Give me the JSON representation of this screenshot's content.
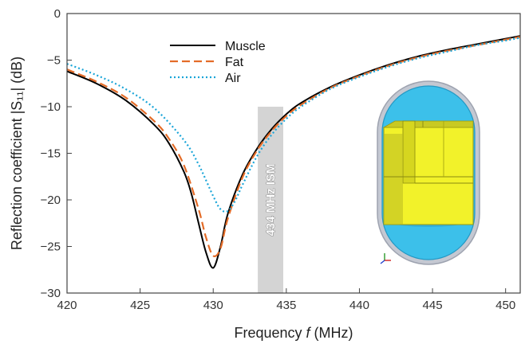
{
  "chart_data": {
    "type": "line",
    "xlabel_prefix": "Frequency ",
    "xlabel_var": "f",
    "xlabel_unit": " (MHz)",
    "ylabel": "Reflection coefficient |S₁₁| (dB)",
    "xlim": [
      420,
      451
    ],
    "ylim": [
      -30,
      0
    ],
    "xticks": [
      420,
      425,
      430,
      435,
      440,
      445,
      450
    ],
    "yticks": [
      0,
      -5,
      -10,
      -15,
      -20,
      -25,
      -30
    ],
    "grid": false,
    "legend_position": "top-left",
    "band": {
      "label": "434 MHz ISM",
      "x0": 433.05,
      "x1": 434.79,
      "y_top": -10,
      "y_bottom": -30,
      "color": "#d4d4d4"
    },
    "series": [
      {
        "name": "Muscle",
        "color": "#000000",
        "style": "solid",
        "x": [
          420,
          422,
          424,
          426,
          427,
          428,
          428.5,
          429,
          429.5,
          430,
          430.5,
          431,
          432,
          433,
          434,
          435,
          436,
          438,
          440,
          442,
          444,
          446,
          448,
          450,
          451
        ],
        "y": [
          -6.2,
          -7.5,
          -9.3,
          -12.0,
          -14.0,
          -17.0,
          -19.3,
          -22.5,
          -25.6,
          -27.3,
          -25.0,
          -21.5,
          -17.3,
          -14.5,
          -12.4,
          -10.8,
          -9.6,
          -7.9,
          -6.6,
          -5.5,
          -4.6,
          -3.9,
          -3.3,
          -2.7,
          -2.4
        ]
      },
      {
        "name": "Fat",
        "color": "#e46c28",
        "style": "dashed",
        "x": [
          420,
          422,
          424,
          426,
          427,
          428,
          429,
          429.5,
          430,
          430.5,
          431,
          432,
          433,
          434,
          435,
          436,
          438,
          440,
          442,
          444,
          446,
          448,
          450,
          451
        ],
        "y": [
          -6.0,
          -7.3,
          -9.0,
          -11.6,
          -13.5,
          -16.3,
          -21.0,
          -24.0,
          -26.0,
          -25.2,
          -22.0,
          -17.6,
          -14.7,
          -12.6,
          -11.0,
          -9.8,
          -8.0,
          -6.7,
          -5.6,
          -4.7,
          -4.0,
          -3.4,
          -2.8,
          -2.5
        ]
      },
      {
        "name": "Air",
        "color": "#1aa5d8",
        "style": "dotted",
        "x": [
          420,
          422,
          424,
          426,
          428,
          429,
          430,
          430.5,
          431,
          431.5,
          432,
          433,
          434,
          435,
          436,
          438,
          440,
          442,
          444,
          446,
          448,
          450,
          451
        ],
        "y": [
          -5.4,
          -6.6,
          -8.1,
          -10.2,
          -13.6,
          -16.2,
          -19.6,
          -21.0,
          -21.2,
          -20.1,
          -18.4,
          -15.3,
          -13.0,
          -11.3,
          -10.0,
          -8.1,
          -6.8,
          -5.7,
          -4.8,
          -4.1,
          -3.4,
          -2.9,
          -2.6
        ]
      }
    ]
  }
}
